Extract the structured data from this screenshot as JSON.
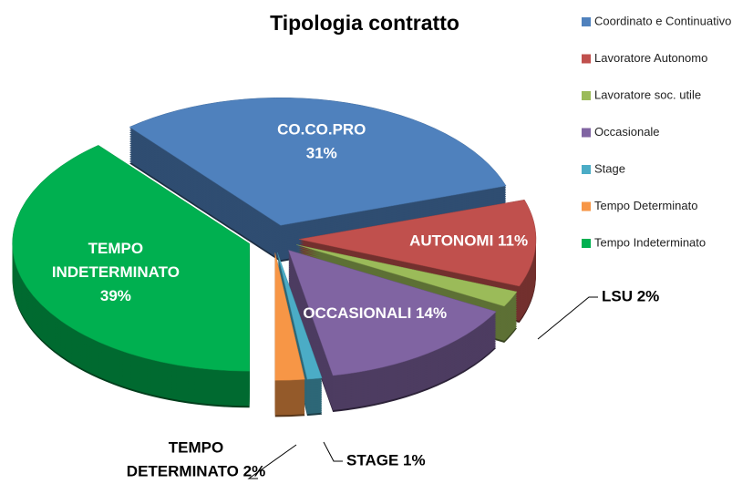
{
  "chart_data": {
    "type": "pie3d",
    "title": "Tipologia contratto",
    "categories": [
      "Coordinato e Continuativo",
      "Lavoratore Autonomo",
      "Lavoratore soc. utile",
      "Occasionale",
      "Stage",
      "Tempo Determinato",
      "Tempo Indeterminato"
    ],
    "values": [
      31,
      11,
      2,
      14,
      1,
      2,
      39
    ],
    "value_labels": [
      [
        "CO.CO.PRO",
        "31%"
      ],
      [
        "AUTONOMI 11%"
      ],
      [
        "LSU 2%"
      ],
      [
        "OCCASIONALI 14%"
      ],
      [
        "STAGE 1%"
      ],
      [
        "TEMPO",
        "DETERMINATO 2%"
      ],
      [
        "TEMPO",
        "INDETERMINATO",
        "39%"
      ]
    ],
    "colors": [
      "#4f81bd",
      "#c0504d",
      "#9bbb59",
      "#8064a2",
      "#4bacc6",
      "#f79646",
      "#00b050"
    ],
    "legend": "right"
  }
}
